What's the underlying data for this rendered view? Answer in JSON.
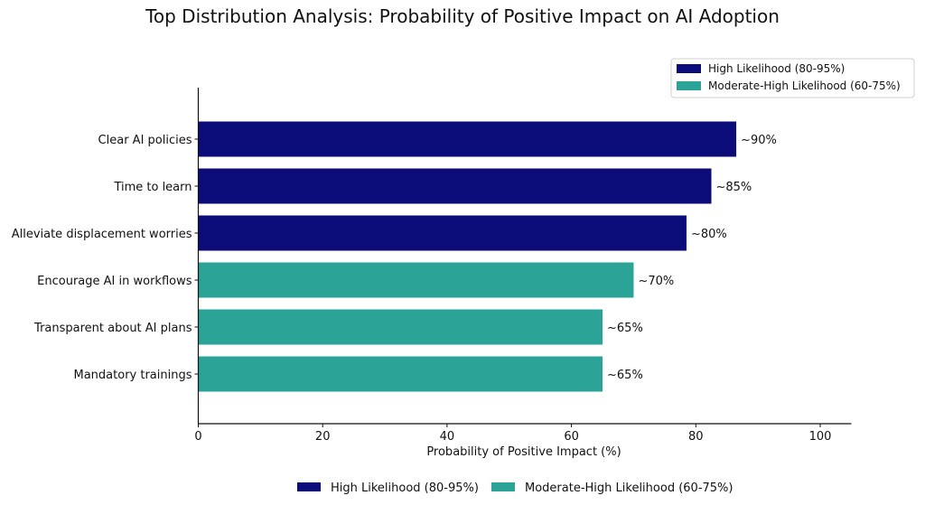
{
  "chart_data": {
    "type": "bar",
    "orientation": "horizontal",
    "title": "Top Distribution Analysis: Probability of Positive Impact on AI Adoption",
    "xlabel": "Probability of Positive Impact (%)",
    "ylabel": "",
    "xlim": [
      0,
      105
    ],
    "xticks": [
      0,
      20,
      40,
      60,
      80,
      100
    ],
    "grid": false,
    "categories": [
      "Clear AI policies",
      "Time to learn",
      "Alleviate displacement worries",
      "Encourage AI in workflows",
      "Transparent about AI plans",
      "Mandatory trainings"
    ],
    "values": [
      86.5,
      82.5,
      78.5,
      70,
      65,
      65
    ],
    "value_labels": [
      "~90%",
      "~85%",
      "~80%",
      "~70%",
      "~65%",
      "~65%"
    ],
    "groups": [
      "high",
      "high",
      "high",
      "moderate",
      "moderate",
      "moderate"
    ],
    "series": [
      {
        "key": "high",
        "name": "High Likelihood (80-95%)",
        "color": "#0b0c7a"
      },
      {
        "key": "moderate",
        "name": "Moderate-High Likelihood (60-75%)",
        "color": "#2ba396"
      }
    ],
    "legend": {
      "placement": "top-right",
      "second_placement": "bottom-center"
    }
  }
}
